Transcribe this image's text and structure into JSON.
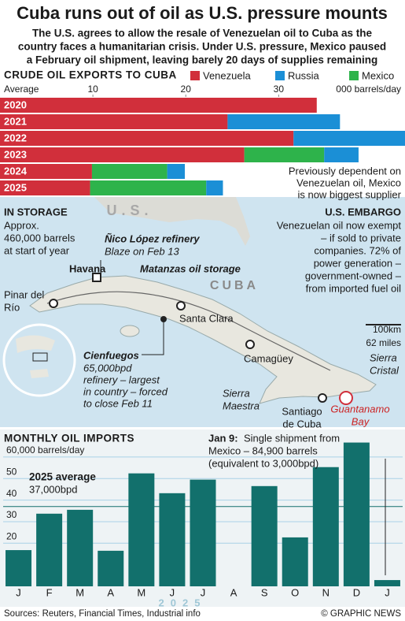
{
  "header": {
    "title": "Cuba runs out of oil as U.S. pressure mounts",
    "subtitle": [
      "The U.S. agrees to allow the resale of Venezuelan oil to Cuba as the",
      "country faces a humanitarian crisis. Under U.S. pressure, Mexico paused",
      "a February oil shipment, leaving barely 20 days of supplies remaining"
    ]
  },
  "chart_data": [
    {
      "type": "bar",
      "orientation": "horizontal",
      "stacked": true,
      "title": "CRUDE OIL EXPORTS TO CUBA",
      "x_label": "Average",
      "x_unit": "000 barrels/day",
      "categories": [
        "2020",
        "2021",
        "2022",
        "2023",
        "2024",
        "2025"
      ],
      "series": [
        {
          "name": "Venezuela",
          "color": "#d12f3b",
          "values": [
            34.1,
            24.5,
            31.6,
            26.3,
            9.9,
            9.7
          ]
        },
        {
          "name": "Russia",
          "color": "#1b8fd6",
          "values": [
            0,
            12.1,
            12.0,
            3.7,
            1.9,
            1.8
          ]
        },
        {
          "name": "Mexico",
          "color": "#2eb34b",
          "values": [
            0,
            0,
            0,
            8.6,
            8.1,
            12.5
          ]
        }
      ],
      "xlim": [
        0,
        43.6
      ],
      "xticks": [
        10,
        20,
        30
      ],
      "annotation": [
        "Previously dependent on",
        "Venezuelan oil, Mexico",
        "is now biggest supplier"
      ]
    },
    {
      "type": "bar",
      "title": "MONTHLY OIL IMPORTS",
      "categories": [
        "J",
        "F",
        "M",
        "A",
        "M",
        "J",
        "J",
        "A",
        "S",
        "O",
        "N",
        "D",
        "J"
      ],
      "values": [
        16.8,
        33.7,
        35.5,
        16.5,
        52.4,
        43.2,
        49.5,
        0,
        46.5,
        22.7,
        55.3,
        66.7,
        2.9
      ],
      "color": "#12706c",
      "period_label": "2025",
      "ylim": [
        0,
        68
      ],
      "yticks": [
        20,
        30,
        40,
        50,
        {
          "value": 60,
          "label": "60,000 barrels/day"
        }
      ],
      "grid": true,
      "average": 37,
      "average_label": "2025 average",
      "average_value_label": "37,000bpd",
      "annotation": {
        "label": "Jan 9:",
        "lines": [
          "Single shipment from",
          "Mexico – 84,900 barrels",
          "(equivalent to 3,000bpd)"
        ]
      }
    }
  ],
  "map": {
    "us": "U.S.",
    "country": "CUBA",
    "storage": {
      "title": "IN STORAGE",
      "lines": [
        "Approx.",
        "460,000 barrels",
        "at start of year"
      ]
    },
    "embargo": {
      "title": "U.S. EMBARGO",
      "lines": [
        "Venezuelan oil now exempt",
        "– if sold to private",
        "companies. 72% of",
        "power generation –",
        "government-owned –",
        "from imported fuel oil"
      ]
    },
    "nico": {
      "title": "Ñico López refinery",
      "lines": [
        "Blaze on Feb 13"
      ]
    },
    "matanzas": "Matanzas oil storage",
    "cienfuegos": {
      "title": "Cienfuegos",
      "lines": [
        "65,000bpd",
        "refinery – largest",
        "in country – forced",
        "to close Feb 11"
      ]
    },
    "places": [
      [
        "Havana"
      ],
      [
        "Pinar del",
        "Río"
      ],
      [
        "Santa Clara"
      ],
      [
        "Camagüey"
      ],
      [
        "Sierra",
        "Cristal"
      ],
      [
        "Sierra",
        "Maestra"
      ],
      [
        "Santiago",
        "de Cuba"
      ],
      [
        "Guantanamo",
        "Bay"
      ]
    ],
    "scale": [
      "100km",
      "62 miles"
    ]
  },
  "footer": {
    "sources": "Sources: Reuters, Financial Times, Industrial info",
    "credit": "© GRAPHIC NEWS"
  }
}
